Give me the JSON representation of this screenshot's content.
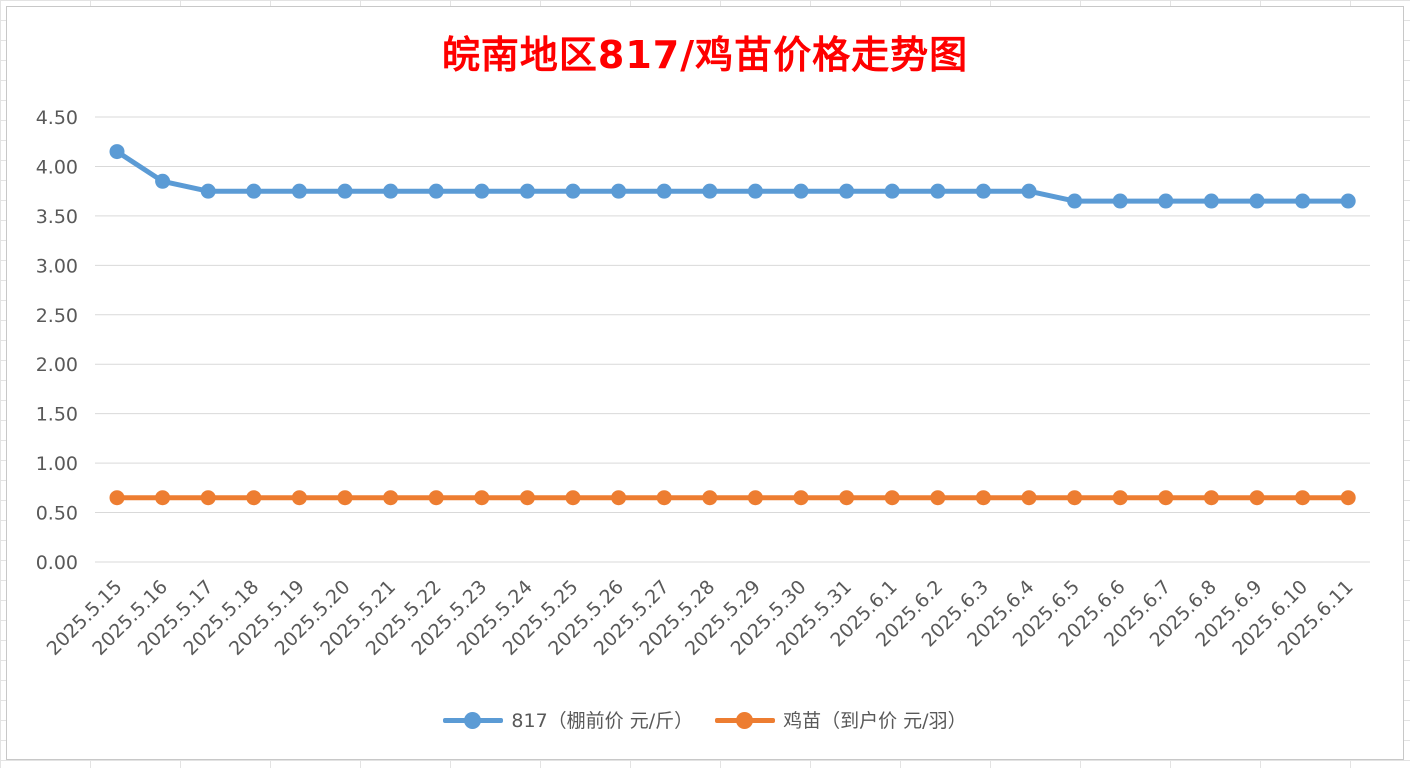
{
  "chart_data": {
    "type": "line",
    "title": "皖南地区817/鸡苗价格走势图",
    "xlabel": "",
    "ylabel": "",
    "ylim": [
      0,
      4.5
    ],
    "y_ticks": [
      "0.00",
      "0.50",
      "1.00",
      "1.50",
      "2.00",
      "2.50",
      "3.00",
      "3.50",
      "4.00",
      "4.50"
    ],
    "grid": true,
    "legend_position": "bottom",
    "categories": [
      "2025.5.15",
      "2025.5.16",
      "2025.5.17",
      "2025.5.18",
      "2025.5.19",
      "2025.5.20",
      "2025.5.21",
      "2025.5.22",
      "2025.5.23",
      "2025.5.24",
      "2025.5.25",
      "2025.5.26",
      "2025.5.27",
      "2025.5.28",
      "2025.5.29",
      "2025.5.30",
      "2025.5.31",
      "2025.6.1",
      "2025.6.2",
      "2025.6.3",
      "2025.6.4",
      "2025.6.5",
      "2025.6.6",
      "2025.6.7",
      "2025.6.8",
      "2025.6.9",
      "2025.6.10",
      "2025.6.11"
    ],
    "series": [
      {
        "name": "817（棚前价 元/斤）",
        "color": "#5b9bd5",
        "values": [
          4.15,
          3.85,
          3.75,
          3.75,
          3.75,
          3.75,
          3.75,
          3.75,
          3.75,
          3.75,
          3.75,
          3.75,
          3.75,
          3.75,
          3.75,
          3.75,
          3.75,
          3.75,
          3.75,
          3.75,
          3.75,
          3.65,
          3.65,
          3.65,
          3.65,
          3.65,
          3.65,
          3.65
        ]
      },
      {
        "name": "鸡苗（到户价 元/羽）",
        "color": "#ed7d31",
        "values": [
          0.65,
          0.65,
          0.65,
          0.65,
          0.65,
          0.65,
          0.65,
          0.65,
          0.65,
          0.65,
          0.65,
          0.65,
          0.65,
          0.65,
          0.65,
          0.65,
          0.65,
          0.65,
          0.65,
          0.65,
          0.65,
          0.65,
          0.65,
          0.65,
          0.65,
          0.65,
          0.65,
          0.65
        ]
      }
    ]
  }
}
